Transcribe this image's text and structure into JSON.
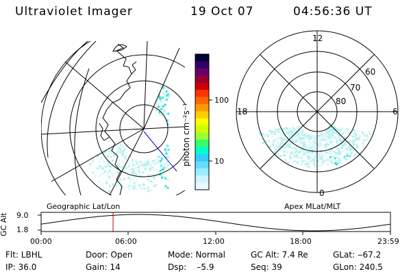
{
  "header": {
    "title": "Ultraviolet Imager",
    "date": "19 Oct 07",
    "time": "04:56:36 UT"
  },
  "colorbar": {
    "unit_label": "photon cm⁻²s⁻¹",
    "ticks": [
      "100",
      "10"
    ],
    "colors": [
      "#000033",
      "#330066",
      "#660066",
      "#990033",
      "#cc0000",
      "#ff3300",
      "#ff6600",
      "#ff9900",
      "#ffcc00",
      "#ffff00",
      "#ccff00",
      "#99ff33",
      "#33ff66",
      "#00ffcc",
      "#33ccff",
      "#66ddff",
      "#99eeff",
      "#ccf5ff",
      "#e6fbff"
    ]
  },
  "left_map": {
    "caption": "Geographic Lat/Lon",
    "aurora_color": "#b3f0f0",
    "aurora_bright": "#33e0e0",
    "coast_color": "#000000",
    "terminator_color": "#0000cc"
  },
  "right_polar": {
    "caption": "Apex MLat/MLT",
    "mlt_labels": {
      "top": "12",
      "bottom": "0",
      "left": "18",
      "right": "6"
    },
    "lat_labels": [
      "60",
      "70",
      "80"
    ]
  },
  "timeline": {
    "axis_label": "GC Alt",
    "y_ticks": [
      "9.0",
      "1.8"
    ],
    "x_ticks": [
      "00:00",
      "06:00",
      "12:00",
      "18:00",
      "23:59"
    ],
    "marker_color": "#cc0000",
    "marker_fraction": 0.206
  },
  "info": {
    "row1": {
      "filter": "Flt: LBHL",
      "door": "Door: Open",
      "mode": "Mode: Normal",
      "gc_alt": "GC Alt: 7.4 Re",
      "glat": "GLat: ‒67.2"
    },
    "row2": {
      "ip": "IP: 36.0",
      "gain": "Gain: 14",
      "dsp": "Dsp:    –5.9",
      "seq": "Seq: 39",
      "glon": "GLon: 240.5"
    }
  }
}
